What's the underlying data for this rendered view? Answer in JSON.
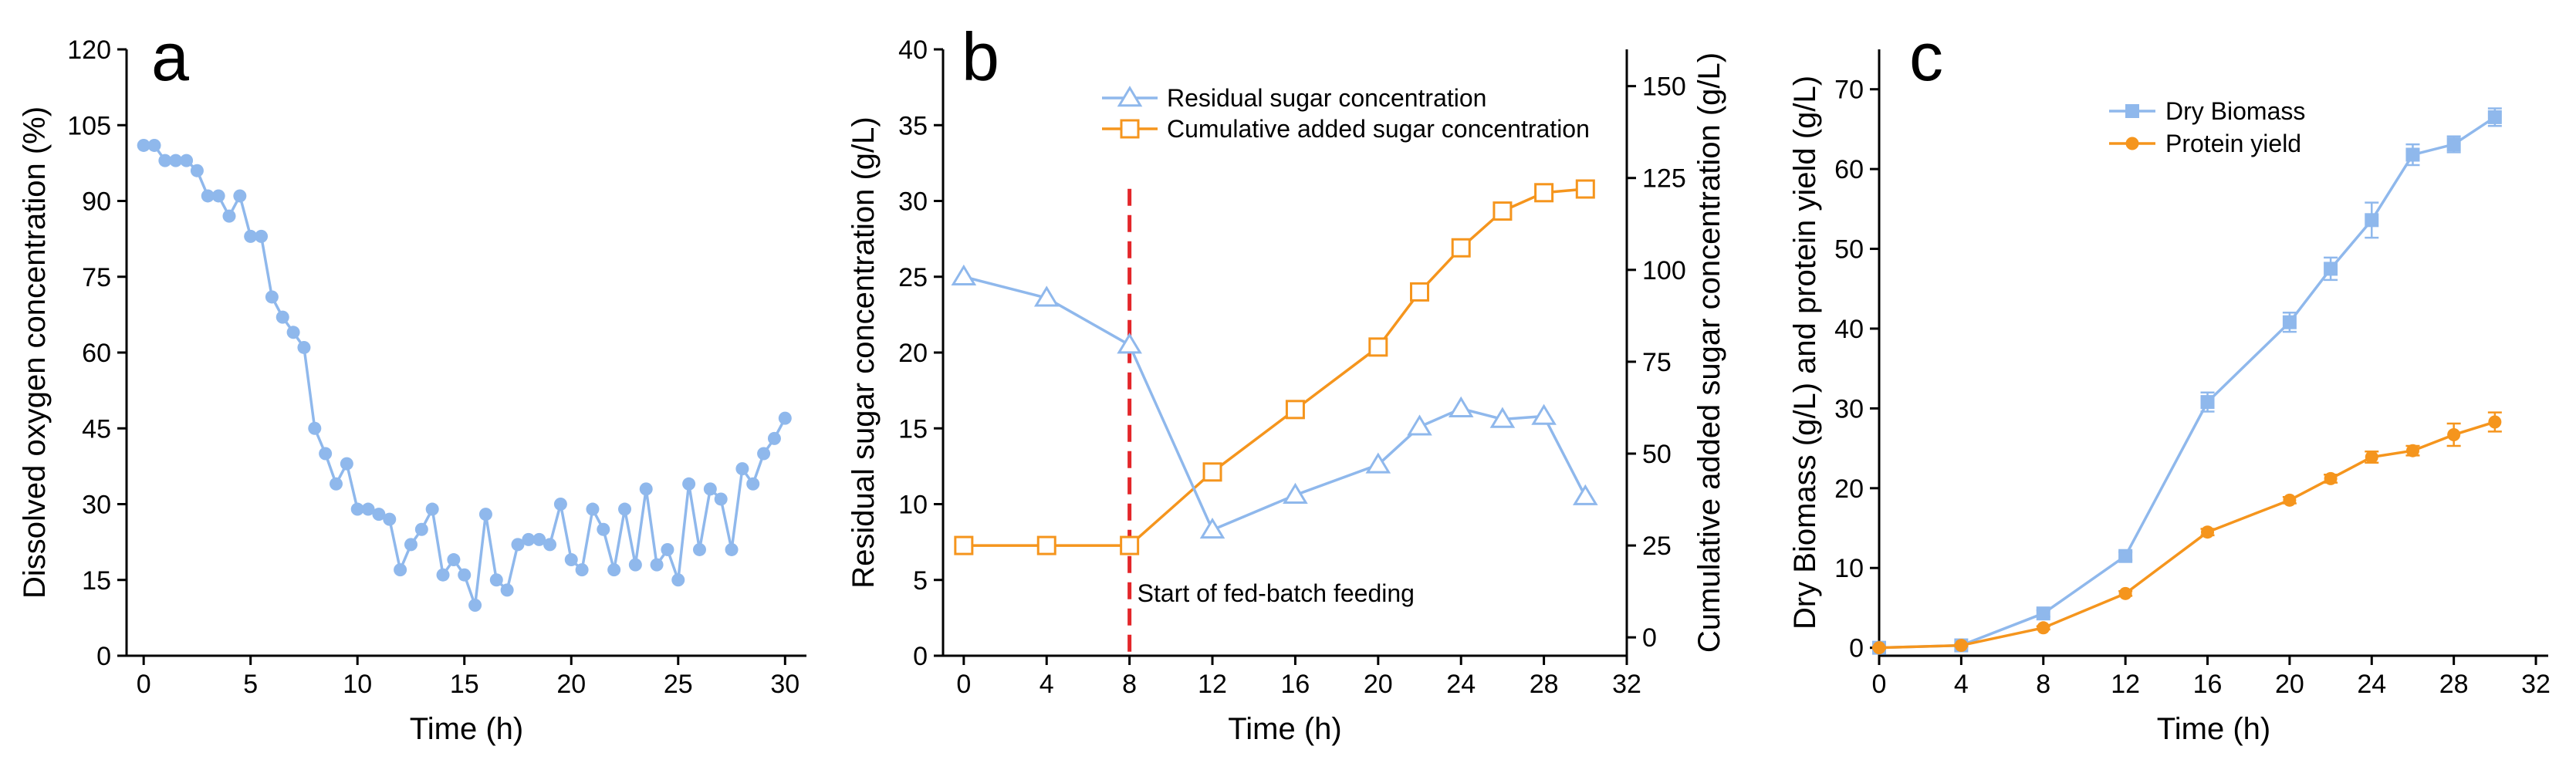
{
  "colors": {
    "blue": "#8FB8EC",
    "orange": "#F5951D",
    "red": "#E3262A",
    "axis": "#000000"
  },
  "chart_data": [
    {
      "panel": "a",
      "type": "line",
      "marker": "circle",
      "xlabel": "Time (h)",
      "ylabel": "Dissolved oxygen concentration (%)",
      "xlim": [
        -0.8,
        31
      ],
      "ylim": [
        0,
        120
      ],
      "xticks": [
        0,
        5,
        10,
        15,
        20,
        25,
        30
      ],
      "yticks": [
        0,
        15,
        30,
        45,
        60,
        75,
        90,
        105,
        120
      ],
      "series": [
        {
          "name": "Dissolved oxygen",
          "x": [
            0,
            0.5,
            1,
            1.5,
            2,
            2.5,
            3,
            3.5,
            4,
            4.5,
            5,
            5.5,
            6,
            6.5,
            7,
            7.5,
            8,
            8.5,
            9,
            9.5,
            10,
            10.5,
            11,
            11.5,
            12,
            12.5,
            13,
            13.5,
            14,
            14.5,
            15,
            15.5,
            16,
            16.5,
            17,
            17.5,
            18,
            18.5,
            19,
            19.5,
            20,
            20.5,
            21,
            21.5,
            22,
            22.5,
            23,
            23.5,
            24,
            24.5,
            25,
            25.5,
            26,
            26.5,
            27,
            27.5,
            28,
            28.5,
            29,
            29.5,
            30
          ],
          "y": [
            101,
            101,
            98,
            98,
            98,
            96,
            91,
            91,
            87,
            91,
            83,
            83,
            71,
            67,
            64,
            61,
            45,
            40,
            34,
            38,
            29,
            29,
            28,
            27,
            17,
            22,
            25,
            29,
            16,
            19,
            16,
            10,
            28,
            15,
            13,
            22,
            23,
            23,
            22,
            30,
            19,
            17,
            29,
            25,
            17,
            29,
            18,
            33,
            18,
            21,
            15,
            34,
            21,
            33,
            31,
            21,
            37,
            34,
            40,
            43,
            47
          ]
        }
      ]
    },
    {
      "panel": "b",
      "type": "line",
      "xlabel": "Time (h)",
      "ylabel": "Residual sugar concentration (g/L)",
      "ylabel_right": "Cumulative added sugar concentration (g/L)",
      "xlim": [
        -1,
        32
      ],
      "ylim": [
        0,
        40
      ],
      "ylim_right": [
        -5,
        160
      ],
      "xticks": [
        0,
        4,
        8,
        12,
        16,
        20,
        24,
        28,
        32
      ],
      "yticks": [
        0,
        5,
        10,
        15,
        20,
        25,
        30,
        35,
        40
      ],
      "yticks_right": [
        0,
        25,
        50,
        75,
        100,
        125,
        150
      ],
      "series": [
        {
          "name": "Residual sugar concentration",
          "axis": "left",
          "marker": "triangle",
          "x": [
            0,
            4,
            8,
            12,
            16,
            20,
            22,
            24,
            26,
            28,
            30
          ],
          "y": [
            25.0,
            23.6,
            20.5,
            8.3,
            10.6,
            12.6,
            15.1,
            16.3,
            15.6,
            15.8,
            10.5
          ]
        },
        {
          "name": "Cumulative added sugar concentration",
          "axis": "right",
          "marker": "square",
          "x": [
            0,
            4,
            8,
            12,
            16,
            20,
            22,
            24,
            26,
            28,
            30
          ],
          "y": [
            25,
            25,
            25,
            45,
            62,
            79,
            94,
            106,
            116,
            121,
            122
          ]
        }
      ],
      "annotation": {
        "x": 8,
        "text": "Start of fed-batch feeding",
        "line_top": 30.8
      }
    },
    {
      "panel": "c",
      "type": "line",
      "xlabel": "Time (h)",
      "ylabel": "Dry Biomass (g/L) and protein yield (g/L)",
      "xlim": [
        0,
        32.6
      ],
      "ylim": [
        -1,
        75
      ],
      "xticks": [
        0,
        4,
        8,
        12,
        16,
        20,
        24,
        28,
        32
      ],
      "yticks": [
        0,
        10,
        20,
        30,
        40,
        50,
        60,
        70
      ],
      "series": [
        {
          "name": "Dry Biomass",
          "marker": "square",
          "x": [
            0,
            4,
            8,
            12,
            16,
            20,
            22,
            24,
            26,
            28,
            30
          ],
          "y": [
            0,
            0.3,
            4.3,
            11.5,
            30.8,
            40.8,
            47.5,
            53.6,
            61.8,
            63.1,
            66.5
          ],
          "err": [
            0.2,
            0.2,
            0.4,
            0.5,
            1.2,
            1.2,
            1.4,
            2.2,
            1.3,
            1.0,
            1.1
          ]
        },
        {
          "name": "Protein yield",
          "marker": "circle",
          "x": [
            0,
            4,
            8,
            12,
            16,
            20,
            22,
            24,
            26,
            28,
            30
          ],
          "y": [
            0,
            0.3,
            2.5,
            6.8,
            14.5,
            18.5,
            21.2,
            23.9,
            24.7,
            26.7,
            28.3
          ],
          "err": [
            0.1,
            0.1,
            0.2,
            0.3,
            0.4,
            0.4,
            0.5,
            0.7,
            0.6,
            1.4,
            1.2
          ]
        }
      ]
    }
  ]
}
